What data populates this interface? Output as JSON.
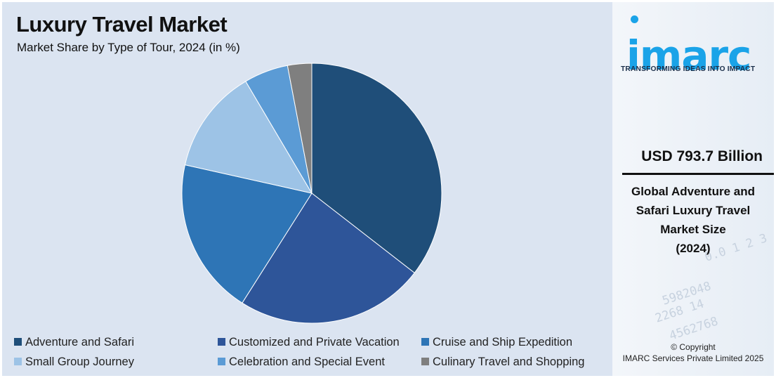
{
  "header": {
    "title": "Luxury Travel Market",
    "subtitle": "Market Share by Type of Tour, 2024 (in %)"
  },
  "chart_data": {
    "type": "pie",
    "title": "Luxury Travel Market",
    "subtitle": "Market Share by Type of Tour, 2024 (in %)",
    "categories": [
      "Adventure and Safari",
      "Customized and Private Vacation",
      "Cruise and Ship Expedition",
      "Small Group Journey",
      "Celebration and Special Event",
      "Culinary Travel and Shopping"
    ],
    "values": [
      35.5,
      23.5,
      19.5,
      13,
      5.5,
      3
    ],
    "colors": [
      "#1f4e79",
      "#2e5599",
      "#2e75b6",
      "#9dc3e6",
      "#5b9bd5",
      "#7f7f7f"
    ],
    "legend_position": "bottom"
  },
  "sidebar": {
    "brand": "imarc",
    "tagline": "TRANSFORMING IDEAS INTO IMPACT",
    "stat_value": "USD 793.7 Billion",
    "stat_label_lines": [
      "Global Adventure and",
      "Safari Luxury Travel",
      "Market Size",
      "(2024)"
    ],
    "copyright_line1": "© Copyright",
    "copyright_line2": "IMARC Services Private Limited 2025"
  }
}
